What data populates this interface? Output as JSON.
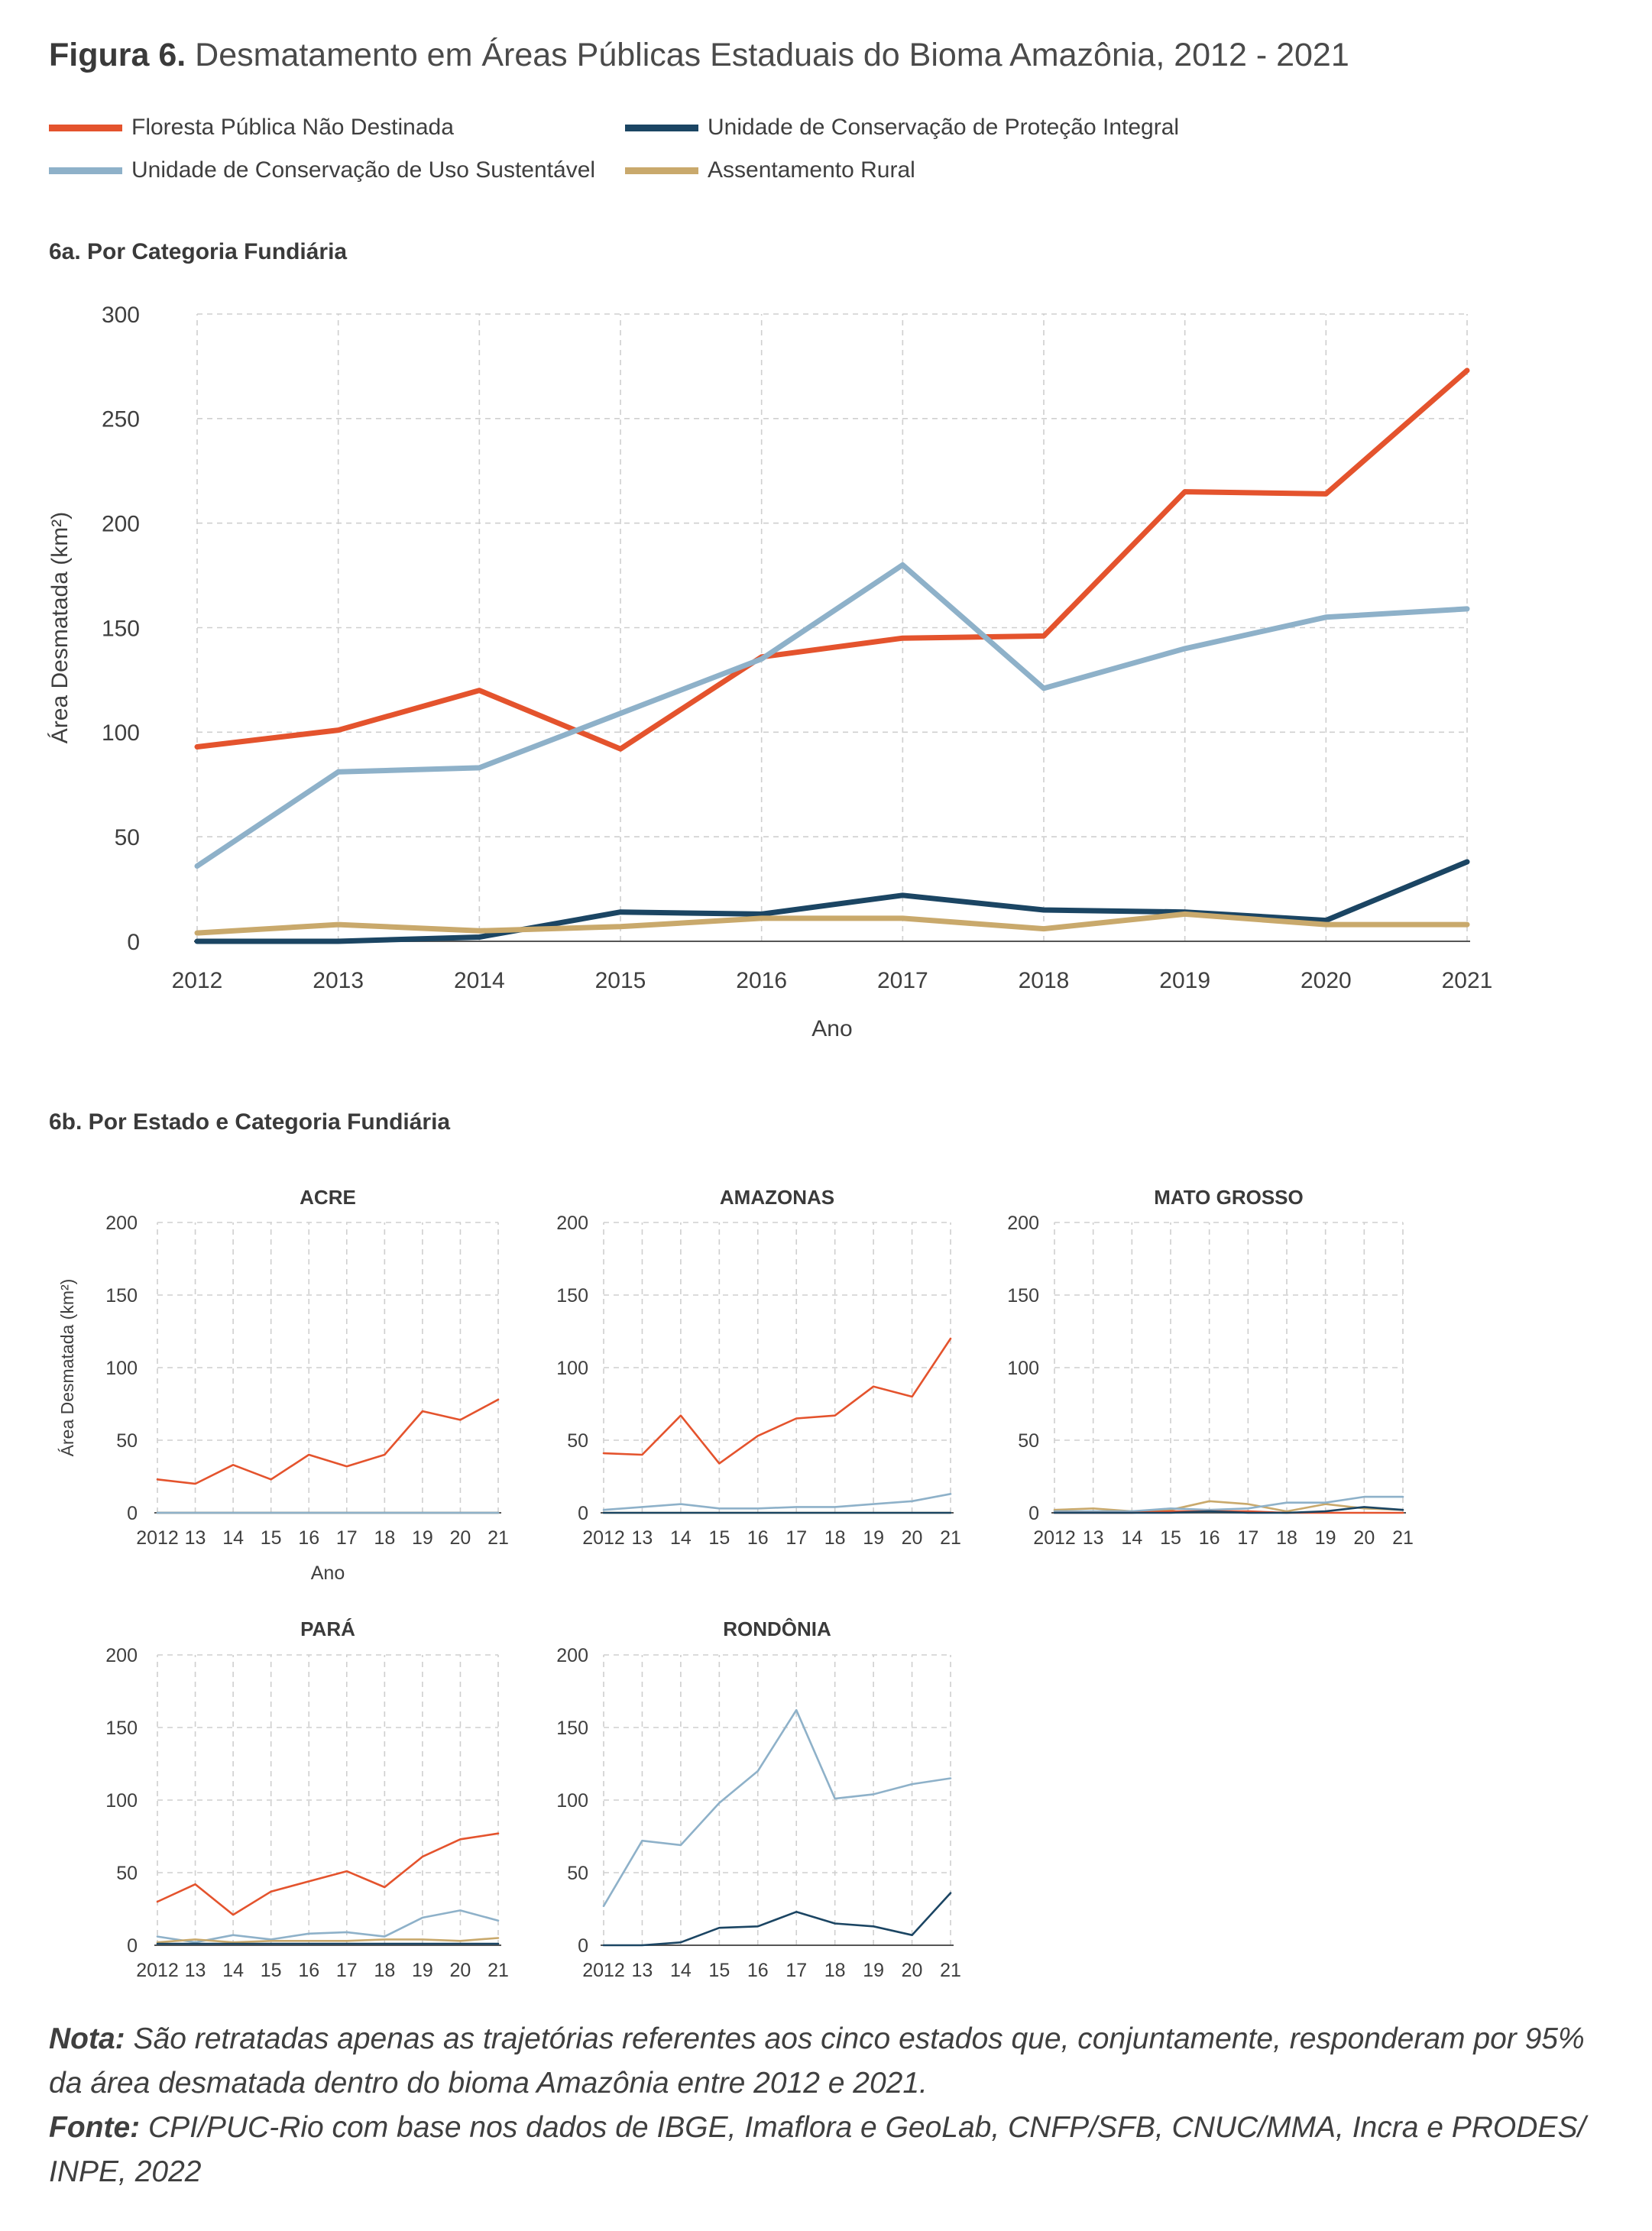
{
  "figure": {
    "label": "Figura 6.",
    "title": "Desmatamento em Áreas Públicas Estaduais do Bioma Amazônia, 2012 - 2021"
  },
  "legend": [
    {
      "name": "Floresta Pública Não Destinada",
      "color": "#e4532d"
    },
    {
      "name": "Unidade de Conservação de Proteção Integral",
      "color": "#1b4563"
    },
    {
      "name": "Unidade de Conservação de Uso Sustentável",
      "color": "#8eb1c9"
    },
    {
      "name": "Assentamento Rural",
      "color": "#c9a96c"
    }
  ],
  "subtitles": {
    "a": "6a. Por Categoria Fundiária",
    "b": "6b. Por Estado e Categoria Fundiária"
  },
  "chart_data": [
    {
      "type": "line",
      "id": "main",
      "title": "",
      "xlabel": "Ano",
      "ylabel": "Área Desmatada (km²)",
      "x": [
        2012,
        2013,
        2014,
        2015,
        2016,
        2017,
        2018,
        2019,
        2020,
        2021
      ],
      "xtick_labels": [
        "2012",
        "2013",
        "2014",
        "2015",
        "2016",
        "2017",
        "2018",
        "2019",
        "2020",
        "2021"
      ],
      "ylim": [
        0,
        300
      ],
      "yticks": [
        0,
        50,
        100,
        150,
        200,
        250,
        300
      ],
      "grid": true,
      "series": [
        {
          "name": "Floresta Pública Não Destinada",
          "color": "#e4532d",
          "values": [
            93,
            101,
            120,
            92,
            136,
            145,
            146,
            215,
            214,
            273
          ]
        },
        {
          "name": "Unidade de Conservação de Uso Sustentável",
          "color": "#8eb1c9",
          "values": [
            36,
            81,
            83,
            109,
            135,
            180,
            121,
            140,
            155,
            159
          ]
        },
        {
          "name": "Unidade de Conservação de Proteção Integral",
          "color": "#1b4563",
          "values": [
            0,
            0,
            2,
            14,
            13,
            22,
            15,
            14,
            10,
            38
          ]
        },
        {
          "name": "Assentamento Rural",
          "color": "#c9a96c",
          "values": [
            4,
            8,
            5,
            7,
            11,
            11,
            6,
            13,
            8,
            8
          ]
        }
      ]
    },
    {
      "type": "line",
      "id": "acre",
      "title": "ACRE",
      "xlabel": "Ano",
      "ylabel": "Área Desmatada (km²)",
      "x": [
        2012,
        2013,
        2014,
        2015,
        2016,
        2017,
        2018,
        2019,
        2020,
        2021
      ],
      "xtick_labels": [
        "2012",
        "13",
        "14",
        "15",
        "16",
        "17",
        "18",
        "19",
        "20",
        "21"
      ],
      "ylim": [
        0,
        200
      ],
      "yticks": [
        0,
        50,
        100,
        150,
        200
      ],
      "grid": true,
      "series": [
        {
          "name": "Floresta Pública Não Destinada",
          "color": "#e4532d",
          "values": [
            23,
            20,
            33,
            23,
            40,
            32,
            40,
            70,
            64,
            78
          ]
        },
        {
          "name": "Unidade de Conservação de Proteção Integral",
          "color": "#1b4563",
          "values": [
            0,
            0,
            0,
            0,
            0,
            0,
            0,
            0,
            0,
            0
          ]
        },
        {
          "name": "Assentamento Rural",
          "color": "#c9a96c",
          "values": [
            0,
            0,
            0,
            0,
            0,
            0,
            0,
            0,
            0,
            0
          ]
        },
        {
          "name": "Unidade de Conservação de Uso Sustentável",
          "color": "#8eb1c9",
          "values": [
            0,
            0,
            0,
            0,
            0,
            0,
            0,
            0,
            0,
            0
          ]
        }
      ]
    },
    {
      "type": "line",
      "id": "amazonas",
      "title": "AMAZONAS",
      "xlabel": "",
      "ylabel": "",
      "x": [
        2012,
        2013,
        2014,
        2015,
        2016,
        2017,
        2018,
        2019,
        2020,
        2021
      ],
      "xtick_labels": [
        "2012",
        "13",
        "14",
        "15",
        "16",
        "17",
        "18",
        "19",
        "20",
        "21"
      ],
      "ylim": [
        0,
        200
      ],
      "yticks": [
        0,
        50,
        100,
        150,
        200
      ],
      "grid": true,
      "series": [
        {
          "name": "Floresta Pública Não Destinada",
          "color": "#e4532d",
          "values": [
            41,
            40,
            67,
            34,
            53,
            65,
            67,
            87,
            80,
            120
          ]
        },
        {
          "name": "Unidade de Conservação de Uso Sustentável",
          "color": "#8eb1c9",
          "values": [
            2,
            4,
            6,
            3,
            3,
            4,
            4,
            6,
            8,
            13
          ]
        },
        {
          "name": "Assentamento Rural",
          "color": "#c9a96c",
          "values": [
            0,
            0,
            0,
            0,
            0,
            0,
            0,
            0,
            0,
            0
          ]
        },
        {
          "name": "Unidade de Conservação de Proteção Integral",
          "color": "#1b4563",
          "values": [
            0,
            0,
            0,
            0,
            0,
            0,
            0,
            0,
            0,
            0
          ]
        }
      ]
    },
    {
      "type": "line",
      "id": "mato-grosso",
      "title": "MATO GROSSO",
      "xlabel": "",
      "ylabel": "",
      "x": [
        2012,
        2013,
        2014,
        2015,
        2016,
        2017,
        2018,
        2019,
        2020,
        2021
      ],
      "xtick_labels": [
        "2012",
        "13",
        "14",
        "15",
        "16",
        "17",
        "18",
        "19",
        "20",
        "21"
      ],
      "ylim": [
        0,
        200
      ],
      "yticks": [
        0,
        50,
        100,
        150,
        200
      ],
      "grid": true,
      "series": [
        {
          "name": "Assentamento Rural",
          "color": "#c9a96c",
          "values": [
            2,
            3,
            1,
            2,
            8,
            6,
            1,
            6,
            3,
            2
          ]
        },
        {
          "name": "Unidade de Conservação de Uso Sustentável",
          "color": "#8eb1c9",
          "values": [
            1,
            1,
            1,
            3,
            2,
            3,
            7,
            7,
            11,
            11
          ]
        },
        {
          "name": "Floresta Pública Não Destinada",
          "color": "#e4532d",
          "values": [
            0,
            0,
            0,
            1,
            1,
            1,
            0,
            0,
            0,
            0
          ]
        },
        {
          "name": "Unidade de Conservação de Proteção Integral",
          "color": "#1b4563",
          "values": [
            0,
            0,
            0,
            0,
            1,
            0,
            0,
            1,
            4,
            2
          ]
        }
      ]
    },
    {
      "type": "line",
      "id": "para",
      "title": "PARÁ",
      "xlabel": "",
      "ylabel": "",
      "x": [
        2012,
        2013,
        2014,
        2015,
        2016,
        2017,
        2018,
        2019,
        2020,
        2021
      ],
      "xtick_labels": [
        "2012",
        "13",
        "14",
        "15",
        "16",
        "17",
        "18",
        "19",
        "20",
        "21"
      ],
      "ylim": [
        0,
        200
      ],
      "yticks": [
        0,
        50,
        100,
        150,
        200
      ],
      "grid": true,
      "series": [
        {
          "name": "Floresta Pública Não Destinada",
          "color": "#e4532d",
          "values": [
            30,
            42,
            21,
            37,
            44,
            51,
            40,
            61,
            73,
            77
          ]
        },
        {
          "name": "Unidade de Conservação de Uso Sustentável",
          "color": "#8eb1c9",
          "values": [
            6,
            2,
            7,
            4,
            8,
            9,
            6,
            19,
            24,
            17
          ]
        },
        {
          "name": "Assentamento Rural",
          "color": "#c9a96c",
          "values": [
            2,
            4,
            2,
            3,
            3,
            3,
            4,
            4,
            3,
            5
          ]
        },
        {
          "name": "Unidade de Conservação de Proteção Integral",
          "color": "#1b4563",
          "values": [
            1,
            1,
            1,
            1,
            1,
            1,
            1,
            1,
            1,
            1
          ]
        }
      ]
    },
    {
      "type": "line",
      "id": "rondonia",
      "title": "RONDÔNIA",
      "xlabel": "",
      "ylabel": "",
      "x": [
        2012,
        2013,
        2014,
        2015,
        2016,
        2017,
        2018,
        2019,
        2020,
        2021
      ],
      "xtick_labels": [
        "2012",
        "13",
        "14",
        "15",
        "16",
        "17",
        "18",
        "19",
        "20",
        "21"
      ],
      "ylim": [
        0,
        200
      ],
      "yticks": [
        0,
        50,
        100,
        150,
        200
      ],
      "grid": true,
      "series": [
        {
          "name": "Unidade de Conservação de Uso Sustentável",
          "color": "#8eb1c9",
          "values": [
            27,
            72,
            69,
            98,
            120,
            162,
            101,
            104,
            111,
            115
          ]
        },
        {
          "name": "Unidade de Conservação de Proteção Integral",
          "color": "#1b4563",
          "values": [
            0,
            0,
            2,
            12,
            13,
            23,
            15,
            13,
            7,
            36
          ]
        }
      ]
    }
  ],
  "notes": {
    "nota_label": "Nota:",
    "nota_text": "São retratadas apenas as trajetórias referentes aos cinco estados que, conjuntamente, responderam por 95% da área desmatada dentro do bioma Amazônia entre 2012 e 2021.",
    "fonte_label": "Fonte:",
    "fonte_text": "CPI/PUC-Rio com base nos dados de IBGE, Imaflora e GeoLab, CNFP/SFB, CNUC/MMA, Incra e PRODES/ INPE, 2022"
  }
}
